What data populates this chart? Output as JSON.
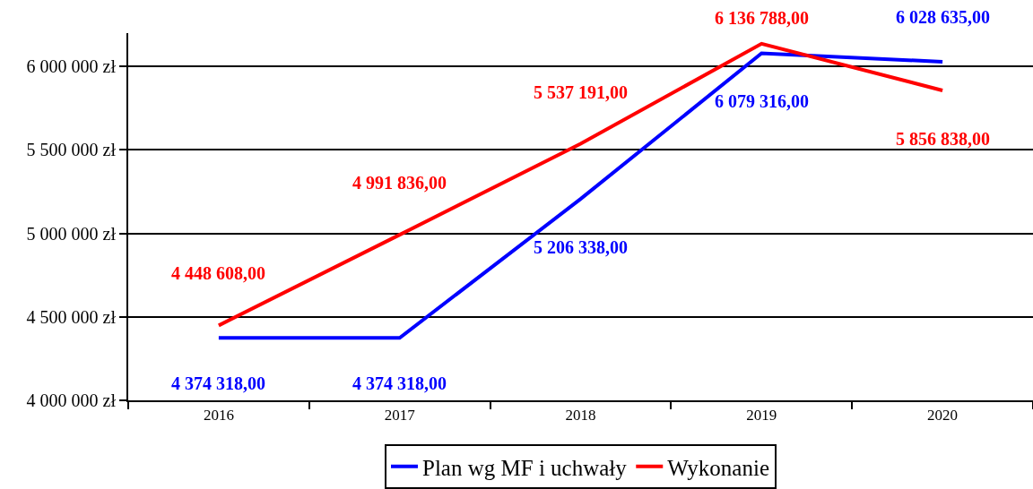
{
  "chart_data": {
    "type": "line",
    "categories": [
      "2016",
      "2017",
      "2018",
      "2019",
      "2020"
    ],
    "series": [
      {
        "name": "Plan wg MF i uchwały",
        "color": "#0000ff",
        "values": [
          4374318,
          4374318,
          5206338,
          6079316,
          6028635
        ],
        "value_labels": [
          "4 374 318,00",
          "4 374 318,00",
          "5 206 338,00",
          "6 079 316,00",
          "6 028 635,00"
        ]
      },
      {
        "name": "Wykonanie",
        "color": "#ff0000",
        "values": [
          4448608,
          4991836,
          5537191,
          6136788,
          5856838
        ],
        "value_labels": [
          "4 448 608,00",
          "4 991 836,00",
          "5 537 191,00",
          "6 136 788,00",
          "5 856 838,00"
        ]
      }
    ],
    "ylim": [
      4000000,
      6200000
    ],
    "yticks": [
      {
        "value": 4000000,
        "label": "4 000 000 zł"
      },
      {
        "value": 4500000,
        "label": "4 500 000 zł"
      },
      {
        "value": 5000000,
        "label": "5 000 000 zł"
      },
      {
        "value": 5500000,
        "label": "5 500 000 zł"
      },
      {
        "value": 6000000,
        "label": "6 000 000 zł"
      }
    ],
    "grid": "y",
    "legend": "bottom",
    "marker": "none",
    "line_style": "solid"
  }
}
